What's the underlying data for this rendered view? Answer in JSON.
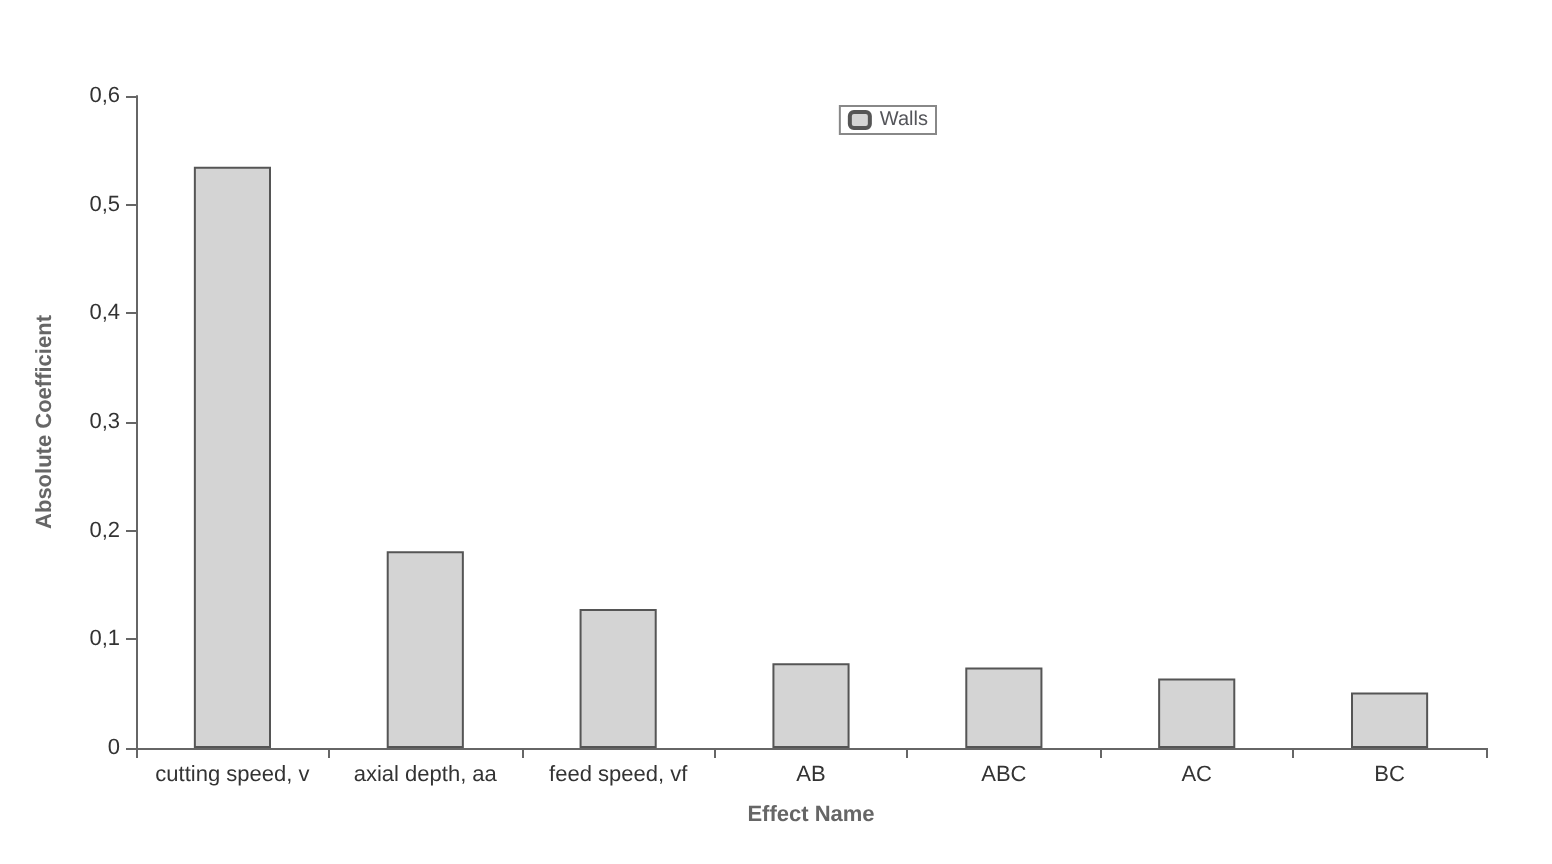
{
  "chart_data": {
    "type": "bar",
    "xlabel": "Effect Name",
    "ylabel": "Absolute Coefficient",
    "categories": [
      "cutting speed, v",
      "axial depth, aa",
      "feed speed, vf",
      "AB",
      "ABC",
      "AC",
      "BC"
    ],
    "series": [
      {
        "name": "Walls",
        "color": "#d4d4d4",
        "values": [
          0.535,
          0.181,
          0.128,
          0.078,
          0.074,
          0.064,
          0.051
        ]
      }
    ],
    "ylim": [
      0,
      0.6
    ],
    "yticks": [
      {
        "value": 0,
        "label": "0"
      },
      {
        "value": 0.1,
        "label": "0,1"
      },
      {
        "value": 0.2,
        "label": "0,2"
      },
      {
        "value": 0.3,
        "label": "0,3"
      },
      {
        "value": 0.4,
        "label": "0,4"
      },
      {
        "value": 0.5,
        "label": "0,5"
      },
      {
        "value": 0.6,
        "label": "0,6"
      }
    ],
    "grid": false,
    "legend": "top right"
  }
}
